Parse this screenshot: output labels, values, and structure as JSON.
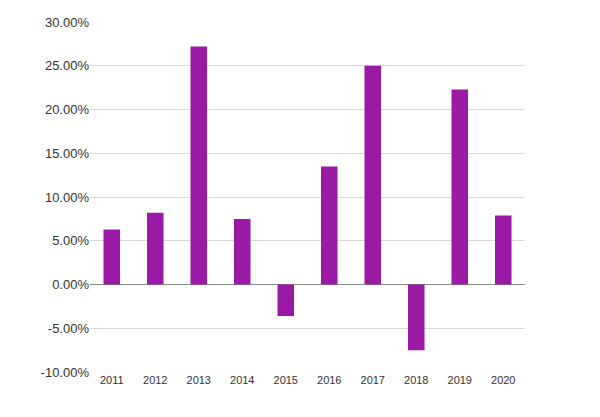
{
  "chart_data": {
    "type": "bar",
    "categories": [
      "2011",
      "2012",
      "2013",
      "2014",
      "2015",
      "2016",
      "2017",
      "2018",
      "2019",
      "2020"
    ],
    "values": [
      6.3,
      8.2,
      27.2,
      7.5,
      -3.6,
      13.5,
      25.0,
      -7.5,
      22.3,
      7.9
    ],
    "color": "#9a1aa6",
    "ylim": [
      -10,
      30
    ],
    "yticks": [
      {
        "value": -10,
        "label": "-10.00%"
      },
      {
        "value": -5,
        "label": "-5.00%"
      },
      {
        "value": 0,
        "label": "0.00%"
      },
      {
        "value": 5,
        "label": "5.00%"
      },
      {
        "value": 10,
        "label": "10.00%"
      },
      {
        "value": 15,
        "label": "15.00%"
      },
      {
        "value": 20,
        "label": "20.00%"
      },
      {
        "value": 25,
        "label": "25.00%"
      },
      {
        "value": 30,
        "label": "30.00%"
      }
    ],
    "grid": true
  }
}
